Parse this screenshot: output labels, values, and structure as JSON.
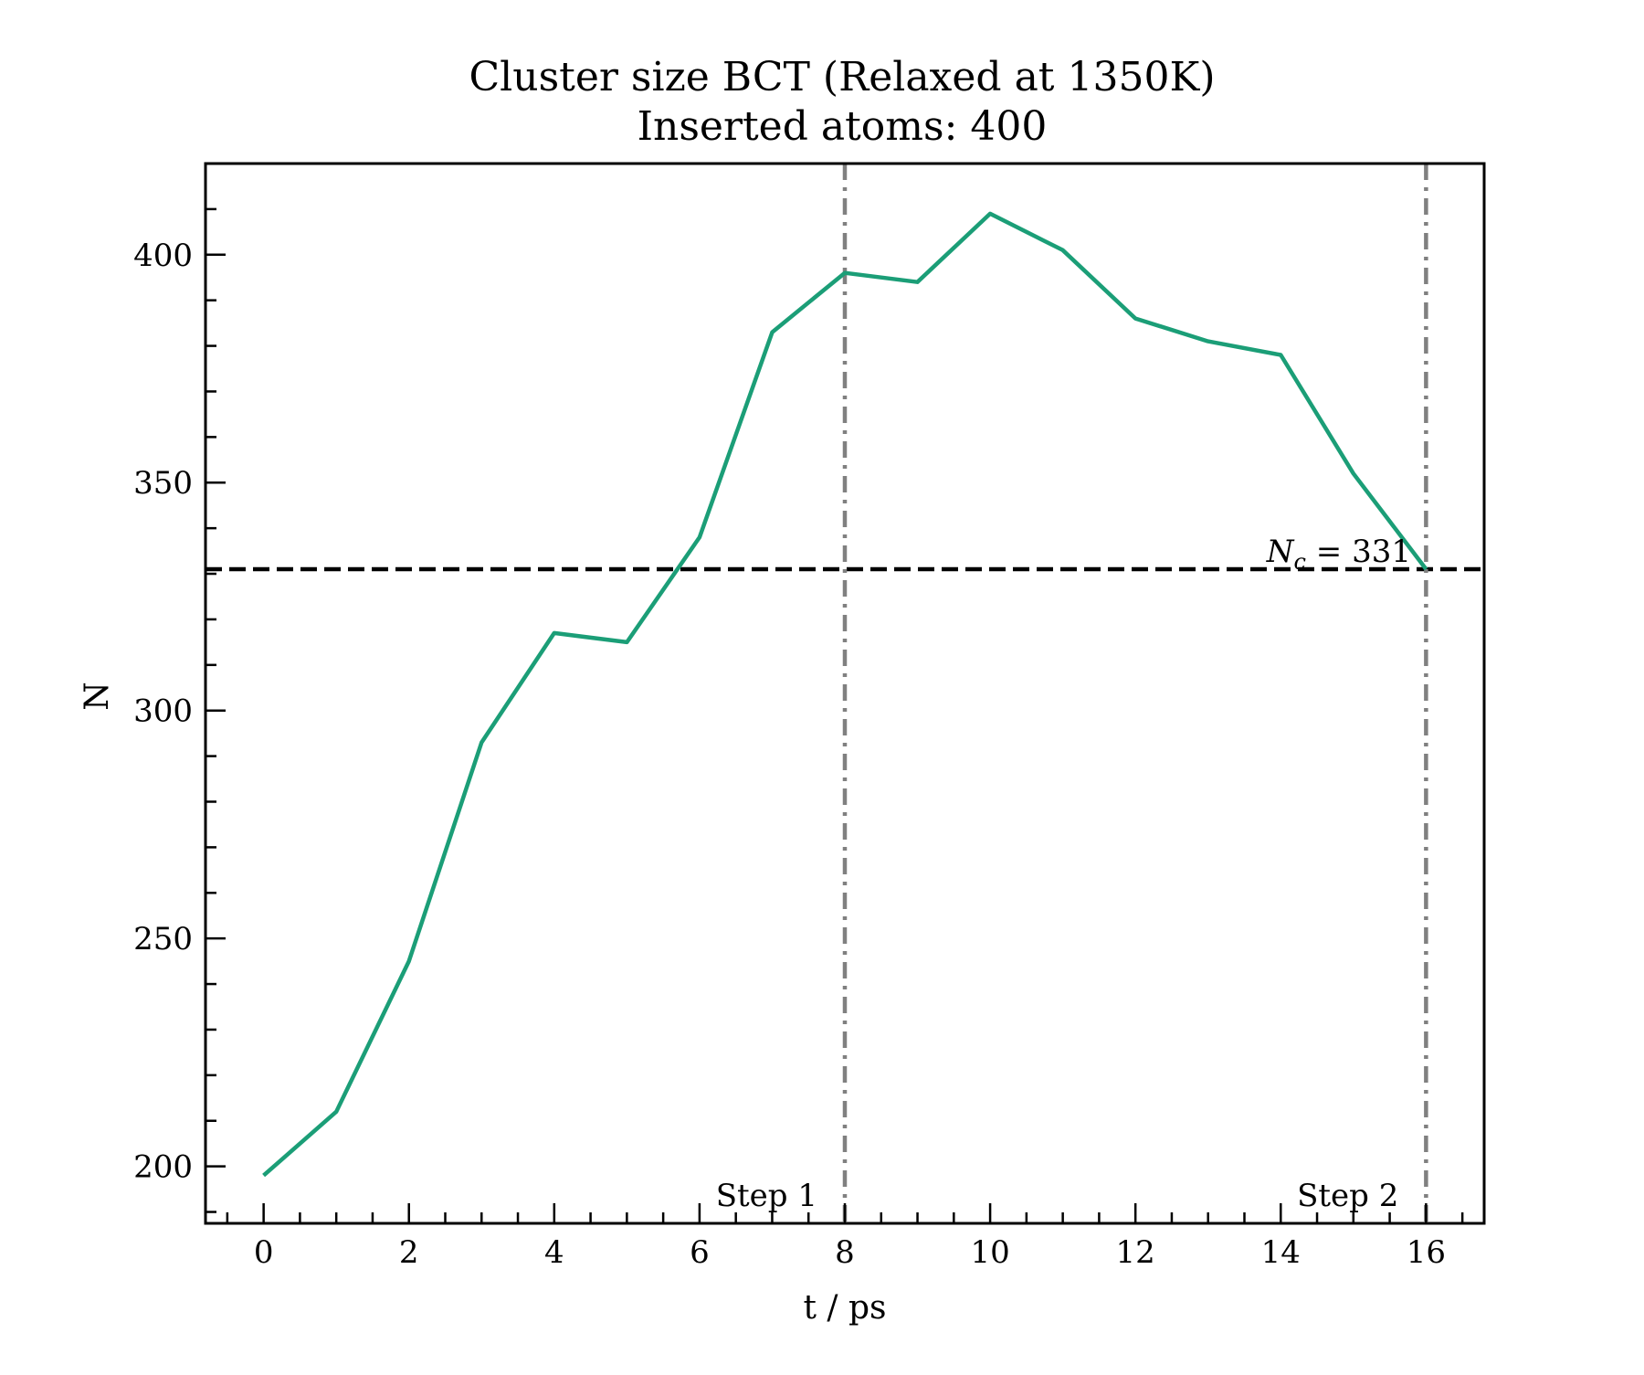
{
  "chart_data": {
    "type": "line",
    "title": "Cluster size BCT (Relaxed at 1350K)",
    "subtitle": "Inserted atoms: 400",
    "xlabel": "t / ps",
    "ylabel": "N",
    "xlim": [
      -0.8,
      16.8
    ],
    "ylim": [
      187.5,
      420
    ],
    "x_ticks": [
      0,
      2,
      4,
      6,
      8,
      10,
      12,
      14,
      16
    ],
    "x_tick_labels": [
      "0",
      "2",
      "4",
      "6",
      "8",
      "10",
      "12",
      "14",
      "16"
    ],
    "y_ticks": [
      200,
      250,
      300,
      350,
      400
    ],
    "y_tick_labels": [
      "200",
      "250",
      "300",
      "350",
      "400"
    ],
    "grid": false,
    "series": [
      {
        "x": [
          0,
          1,
          2,
          3,
          4,
          5,
          6,
          7,
          8,
          9,
          10,
          11,
          12,
          13,
          14,
          15,
          16
        ],
        "values": [
          198,
          212,
          245,
          293,
          317,
          315,
          338,
          383,
          396,
          394,
          409,
          401,
          386,
          381,
          378,
          352,
          331
        ],
        "color": "#1b9e77"
      }
    ],
    "reference_lines": [
      {
        "orientation": "horizontal",
        "value": 331,
        "style": "dashed",
        "color": "#000000",
        "label_symbol": "N",
        "label_sub": "c",
        "label_rest": " = 331"
      },
      {
        "orientation": "vertical",
        "value": 8,
        "style": "dashdot",
        "color": "#808080",
        "label": "Step 1"
      },
      {
        "orientation": "vertical",
        "value": 16,
        "style": "dashdot",
        "color": "#808080",
        "label": "Step 2"
      }
    ]
  }
}
